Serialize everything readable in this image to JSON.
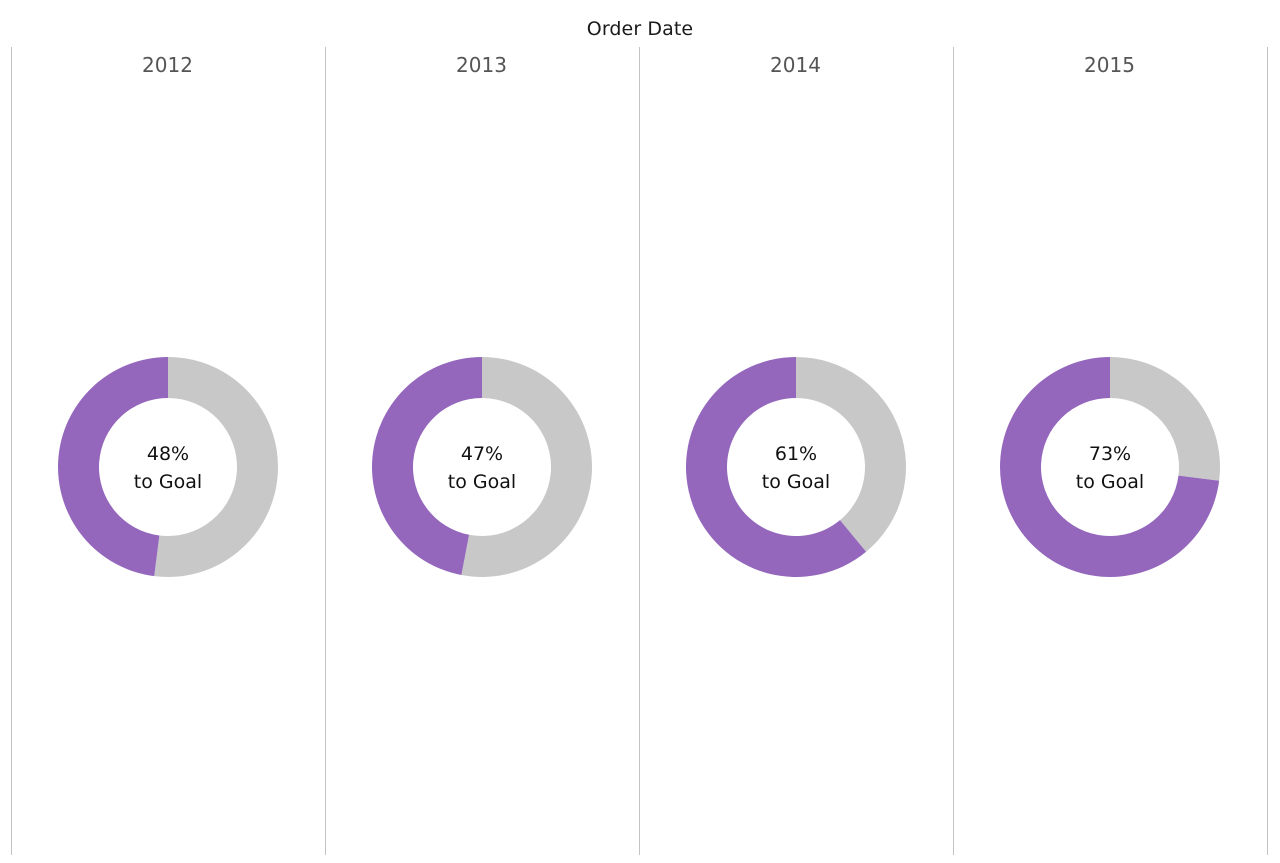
{
  "chart_data": {
    "type": "pie",
    "title": "Order Date",
    "categories": [
      "2012",
      "2013",
      "2014",
      "2015"
    ],
    "values": [
      0.48,
      0.47,
      0.61,
      0.73
    ],
    "labels": [
      {
        "pct": "48%",
        "suffix": "to Goal"
      },
      {
        "pct": "47%",
        "suffix": "to Goal"
      },
      {
        "pct": "61%",
        "suffix": "to Goal"
      },
      {
        "pct": "73%",
        "suffix": "to Goal"
      }
    ],
    "colors": {
      "progress": "#9467bd",
      "remainder": "#c8c8c8",
      "divider": "#c4c4c4"
    }
  }
}
